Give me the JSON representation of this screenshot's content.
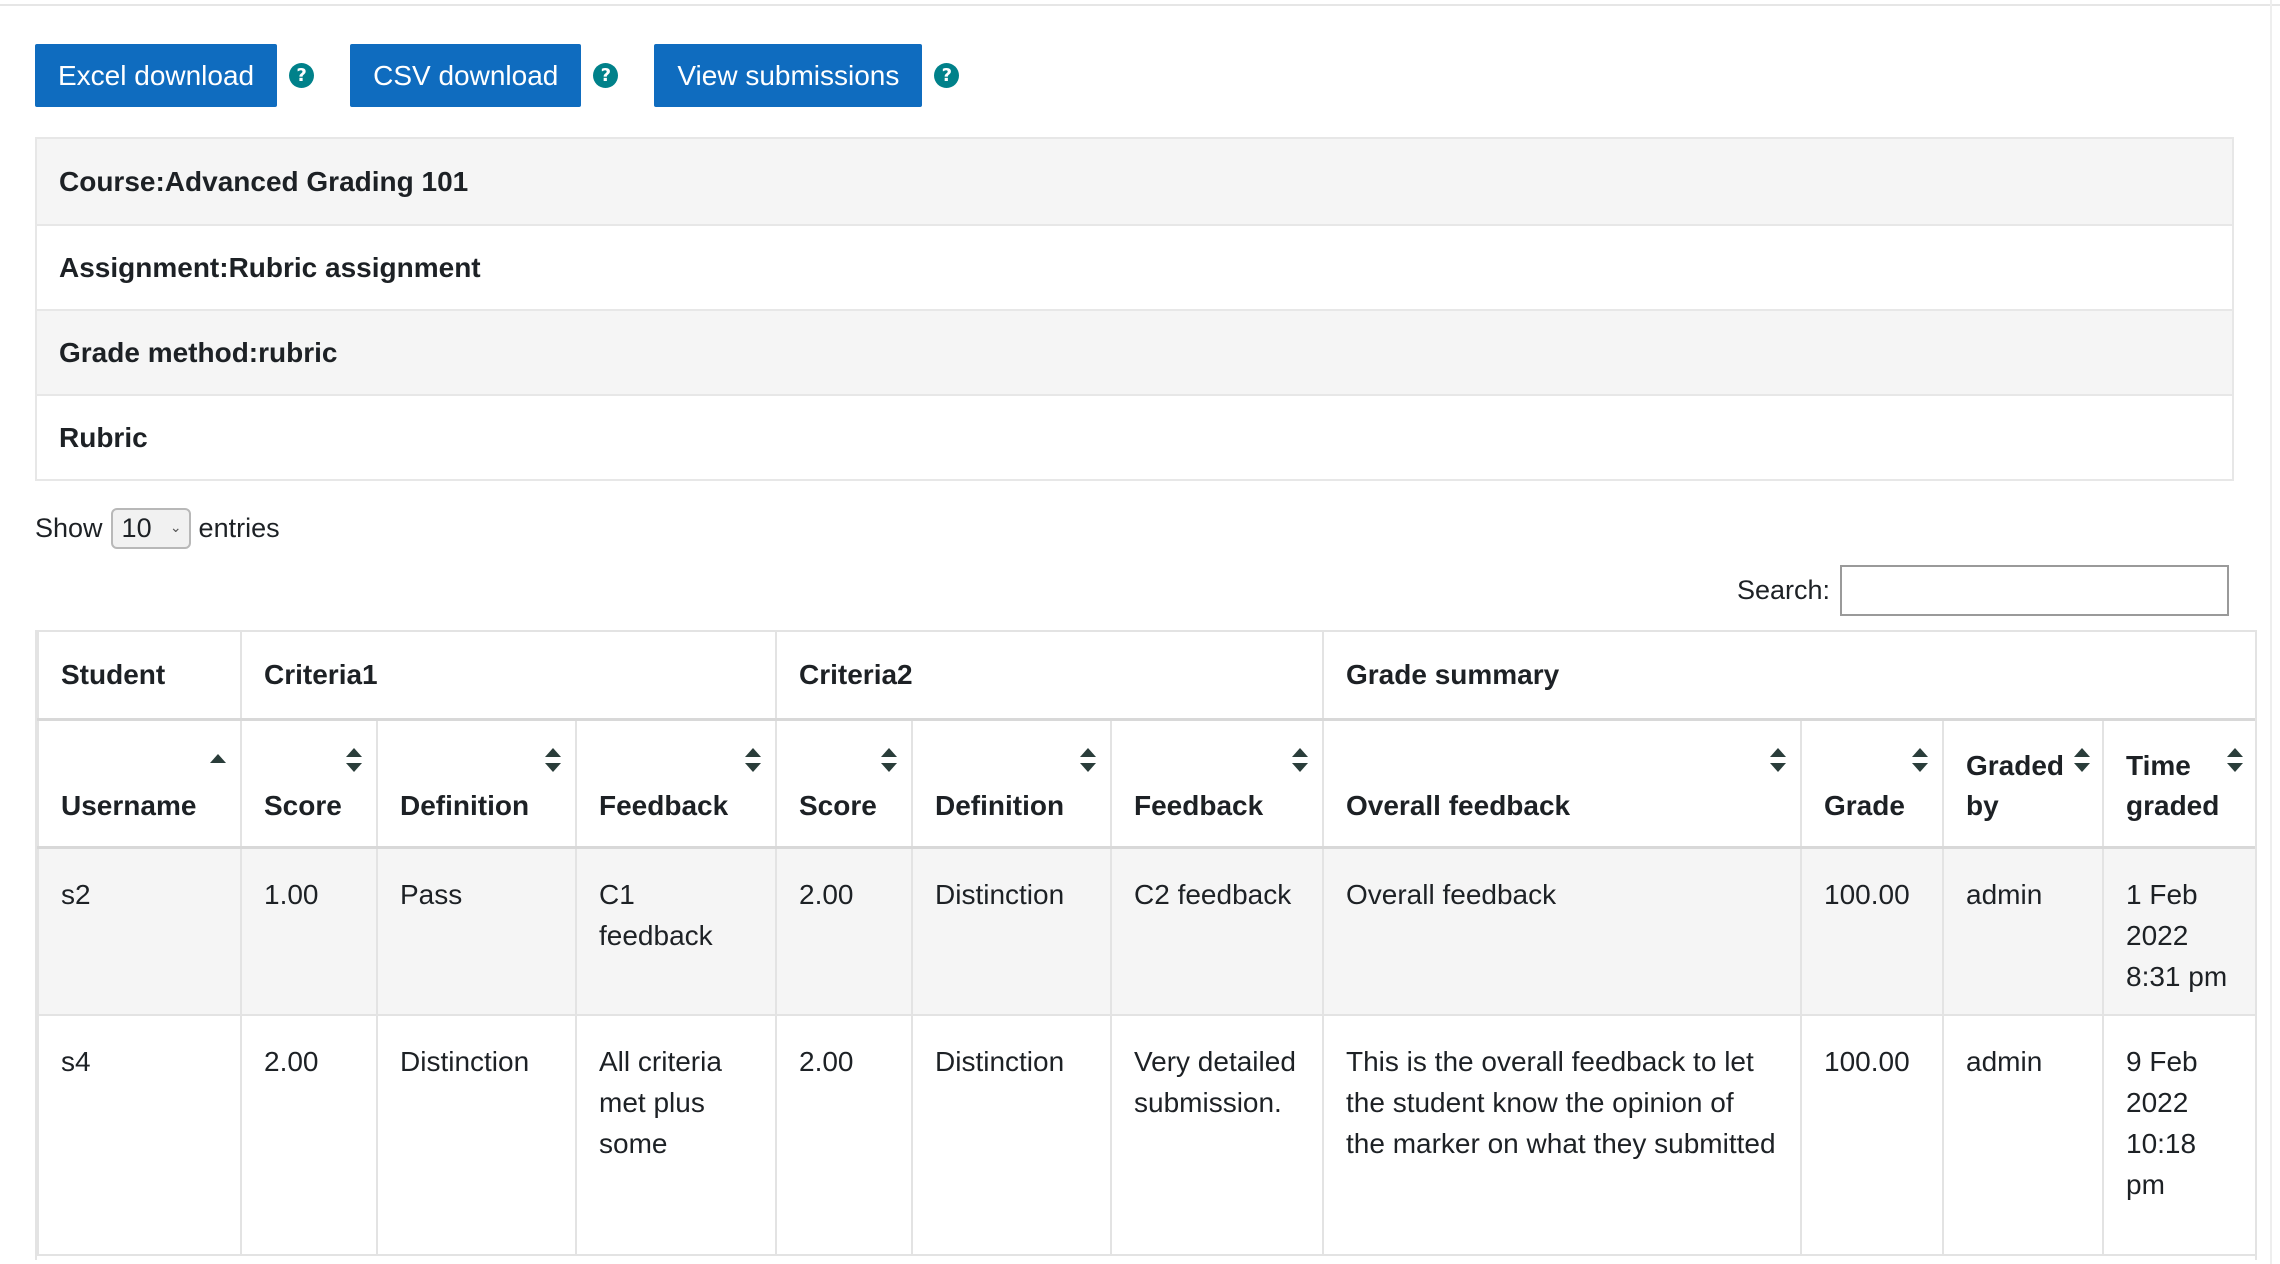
{
  "toolbar": {
    "excel_label": "Excel download",
    "csv_label": "CSV download",
    "view_label": "View submissions",
    "help_glyph": "?"
  },
  "info": {
    "course": "Course:Advanced Grading 101",
    "assignment": "Assignment:Rubric assignment",
    "grade_method": "Grade method:rubric",
    "rubric": "Rubric"
  },
  "length": {
    "show": "Show",
    "value": "10",
    "entries": "entries"
  },
  "search": {
    "label": "Search:",
    "value": ""
  },
  "table": {
    "groups": [
      "Student",
      "Criteria1",
      "Criteria2",
      "Grade summary"
    ],
    "columns": [
      {
        "line1": "",
        "line2": "Username"
      },
      {
        "line1": "",
        "line2": "Score"
      },
      {
        "line1": "",
        "line2": "Definition"
      },
      {
        "line1": "",
        "line2": "Feedback"
      },
      {
        "line1": "",
        "line2": "Score"
      },
      {
        "line1": "",
        "line2": "Definition"
      },
      {
        "line1": "",
        "line2": "Feedback"
      },
      {
        "line1": "",
        "line2": "Overall feedback"
      },
      {
        "line1": "",
        "line2": "Grade"
      },
      {
        "line1": "Graded",
        "line2": "by"
      },
      {
        "line1": "Time",
        "line2": "graded"
      }
    ],
    "rows": [
      {
        "cells": [
          "s2",
          "1.00",
          "Pass",
          "C1 feedback",
          "2.00",
          "Distinction",
          "C2 feedback",
          "Overall feedback",
          "100.00",
          "admin",
          "1 Feb 2022 8:31 pm"
        ]
      },
      {
        "cells": [
          "s4",
          "2.00",
          "Distinction",
          "All criteria met plus some",
          "2.00",
          "Distinction",
          "Very detailed submission.",
          "This is the overall feedback to let the student know the opinion of the marker on what they submitted",
          "100.00",
          "admin",
          "9 Feb 2022 10:18 pm"
        ]
      }
    ]
  },
  "icons": {
    "help": "question-circle-icon",
    "sort": "sort-arrows-icon",
    "sort_asc": "sort-asc-icon",
    "select": "chevron-down-icon"
  },
  "colors": {
    "primary": "#0f6cbf",
    "help": "#00818a"
  }
}
